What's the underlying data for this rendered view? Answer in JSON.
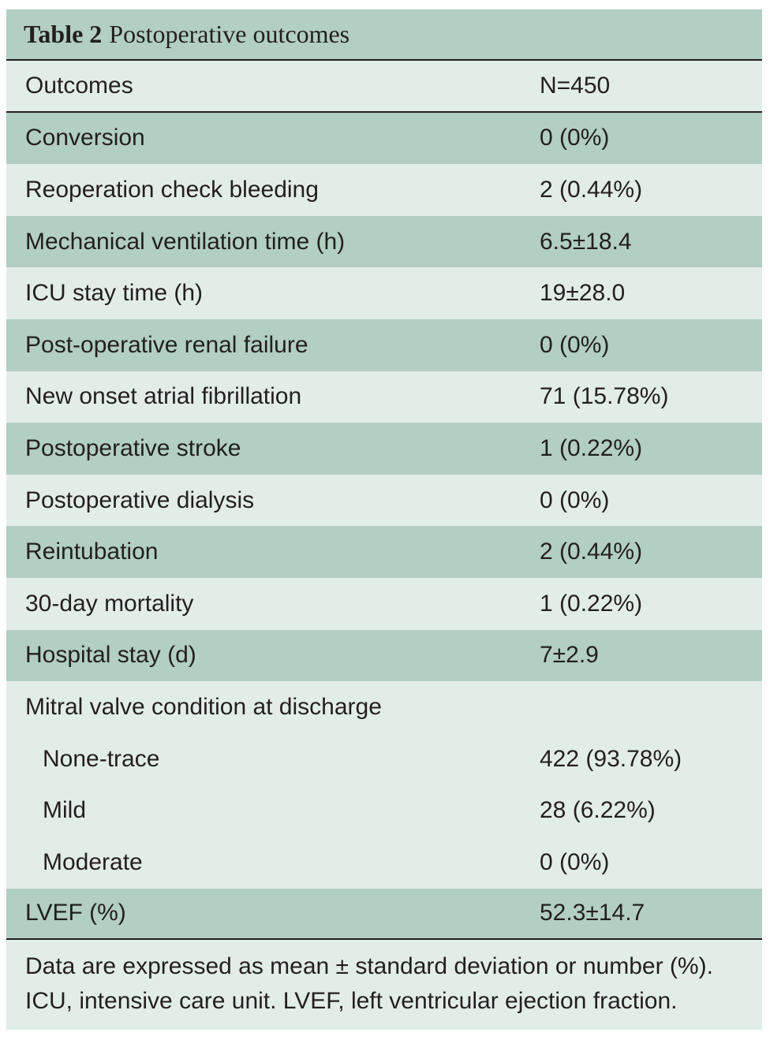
{
  "table": {
    "label": "Table 2",
    "title": "Postoperative outcomes",
    "header": {
      "name": "Outcomes",
      "value": "N=450"
    },
    "rows": [
      {
        "name": "Conversion",
        "value": "0 (0%)"
      },
      {
        "name": "Reoperation check bleeding",
        "value": "2 (0.44%)"
      },
      {
        "name": "Mechanical ventilation time (h)",
        "value": "6.5±18.4"
      },
      {
        "name": "ICU stay time (h)",
        "value": "19±28.0"
      },
      {
        "name": "Post-operative renal failure",
        "value": "0 (0%)"
      },
      {
        "name": "New onset atrial fibrillation",
        "value": "71 (15.78%)"
      },
      {
        "name": "Postoperative stroke",
        "value": "1 (0.22%)"
      },
      {
        "name": "Postoperative dialysis",
        "value": "0 (0%)"
      },
      {
        "name": "Reintubation",
        "value": "2 (0.44%)"
      },
      {
        "name": "30-day mortality",
        "value": "1 (0.22%)"
      },
      {
        "name": "Hospital stay (d)",
        "value": "7±2.9"
      },
      {
        "name": "Mitral valve condition at discharge",
        "value": ""
      },
      {
        "name": "None-trace",
        "value": "422 (93.78%)"
      },
      {
        "name": "Mild",
        "value": "28 (6.22%)"
      },
      {
        "name": "Moderate",
        "value": "0 (0%)"
      },
      {
        "name": "LVEF (%)",
        "value": "52.3±14.7"
      }
    ],
    "footnote": [
      "Data are expressed as mean ± standard deviation or number (%).",
      "ICU, intensive care unit. LVEF, left ventricular ejection fraction."
    ]
  },
  "colors": {
    "dark_row": "#b2cfc1",
    "light_row": "#e3ede8",
    "text": "#231f20"
  }
}
